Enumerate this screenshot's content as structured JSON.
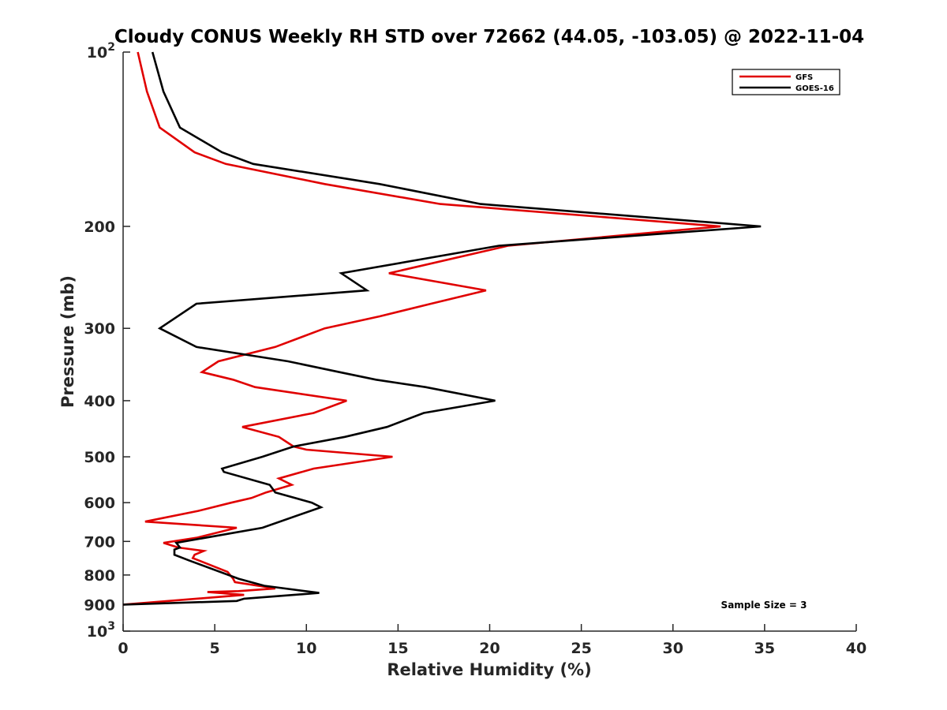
{
  "chart_data": {
    "type": "line",
    "title": "Cloudy CONUS Weekly RH STD over 72662 (44.05, -103.05) @ 2022-11-04",
    "xlabel": "Relative Humidity (%)",
    "ylabel": "Pressure (mb)",
    "xlim": [
      0,
      40
    ],
    "ylim": [
      100,
      1000
    ],
    "y_scale": "log",
    "y_reversed": true,
    "x_ticks": [
      "0",
      "5",
      "10",
      "15",
      "20",
      "25",
      "30",
      "35",
      "40"
    ],
    "y_ticks": [
      {
        "value": 100,
        "label": "10",
        "sup": "2"
      },
      {
        "value": 200,
        "label": "200",
        "sup": ""
      },
      {
        "value": 300,
        "label": "300",
        "sup": ""
      },
      {
        "value": 400,
        "label": "400",
        "sup": ""
      },
      {
        "value": 500,
        "label": "500",
        "sup": ""
      },
      {
        "value": 600,
        "label": "600",
        "sup": ""
      },
      {
        "value": 700,
        "label": "700",
        "sup": ""
      },
      {
        "value": 800,
        "label": "800",
        "sup": ""
      },
      {
        "value": 900,
        "label": "900",
        "sup": ""
      },
      {
        "value": 1000,
        "label": "10",
        "sup": "3"
      }
    ],
    "grid": false,
    "legend_position": "top-right",
    "annotation": "Sample Size = 3",
    "series": [
      {
        "name": "GFS",
        "color": "#e00000",
        "points": [
          [
            0.8,
            100
          ],
          [
            1.3,
            117
          ],
          [
            2.0,
            135
          ],
          [
            3.9,
            149
          ],
          [
            5.6,
            156
          ],
          [
            11.0,
            169
          ],
          [
            17.3,
            183
          ],
          [
            32.6,
            200
          ],
          [
            21.0,
            216
          ],
          [
            14.5,
            241
          ],
          [
            19.8,
            258
          ],
          [
            16.8,
            272
          ],
          [
            14.0,
            286
          ],
          [
            11.0,
            300
          ],
          [
            8.3,
            323
          ],
          [
            5.2,
            342
          ],
          [
            4.3,
            357
          ],
          [
            6.0,
            368
          ],
          [
            7.2,
            379
          ],
          [
            12.2,
            400
          ],
          [
            10.4,
            420
          ],
          [
            6.5,
            444
          ],
          [
            8.5,
            462
          ],
          [
            9.3,
            480
          ],
          [
            10.0,
            486
          ],
          [
            14.7,
            500
          ],
          [
            10.4,
            524
          ],
          [
            8.5,
            545
          ],
          [
            9.2,
            559
          ],
          [
            7.8,
            576
          ],
          [
            7.0,
            589
          ],
          [
            5.9,
            600
          ],
          [
            4.1,
            620
          ],
          [
            1.2,
            647
          ],
          [
            6.2,
            663
          ],
          [
            4.0,
            690
          ],
          [
            2.2,
            704
          ],
          [
            3.0,
            717
          ],
          [
            4.4,
            727
          ],
          [
            3.9,
            738
          ],
          [
            3.8,
            748
          ],
          [
            5.7,
            790
          ],
          [
            6.0,
            812
          ],
          [
            6.1,
            823
          ],
          [
            8.3,
            844
          ],
          [
            6.3,
            853
          ],
          [
            4.6,
            856
          ],
          [
            6.6,
            866
          ],
          [
            0.0,
            900
          ]
        ]
      },
      {
        "name": "GOES-16",
        "color": "#000000",
        "points": [
          [
            1.6,
            100
          ],
          [
            2.2,
            117
          ],
          [
            3.1,
            135
          ],
          [
            5.4,
            149
          ],
          [
            7.1,
            156
          ],
          [
            14.0,
            169
          ],
          [
            19.5,
            183
          ],
          [
            34.8,
            200
          ],
          [
            20.5,
            216
          ],
          [
            11.9,
            241
          ],
          [
            13.3,
            258
          ],
          [
            4.0,
            272
          ],
          [
            2.0,
            300
          ],
          [
            4.0,
            323
          ],
          [
            9.0,
            342
          ],
          [
            11.8,
            357
          ],
          [
            13.8,
            368
          ],
          [
            16.5,
            379
          ],
          [
            20.3,
            400
          ],
          [
            16.4,
            420
          ],
          [
            14.4,
            444
          ],
          [
            12.1,
            462
          ],
          [
            9.3,
            480
          ],
          [
            7.6,
            500
          ],
          [
            5.4,
            524
          ],
          [
            5.5,
            531
          ],
          [
            8.0,
            559
          ],
          [
            8.3,
            576
          ],
          [
            10.3,
            600
          ],
          [
            10.8,
            611
          ],
          [
            7.6,
            663
          ],
          [
            2.9,
            704
          ],
          [
            3.1,
            717
          ],
          [
            2.8,
            723
          ],
          [
            2.8,
            738
          ],
          [
            3.6,
            755
          ],
          [
            6.3,
            812
          ],
          [
            7.7,
            835
          ],
          [
            10.7,
            859
          ],
          [
            6.6,
            879
          ],
          [
            6.2,
            887
          ],
          [
            0.0,
            900
          ]
        ]
      }
    ]
  }
}
